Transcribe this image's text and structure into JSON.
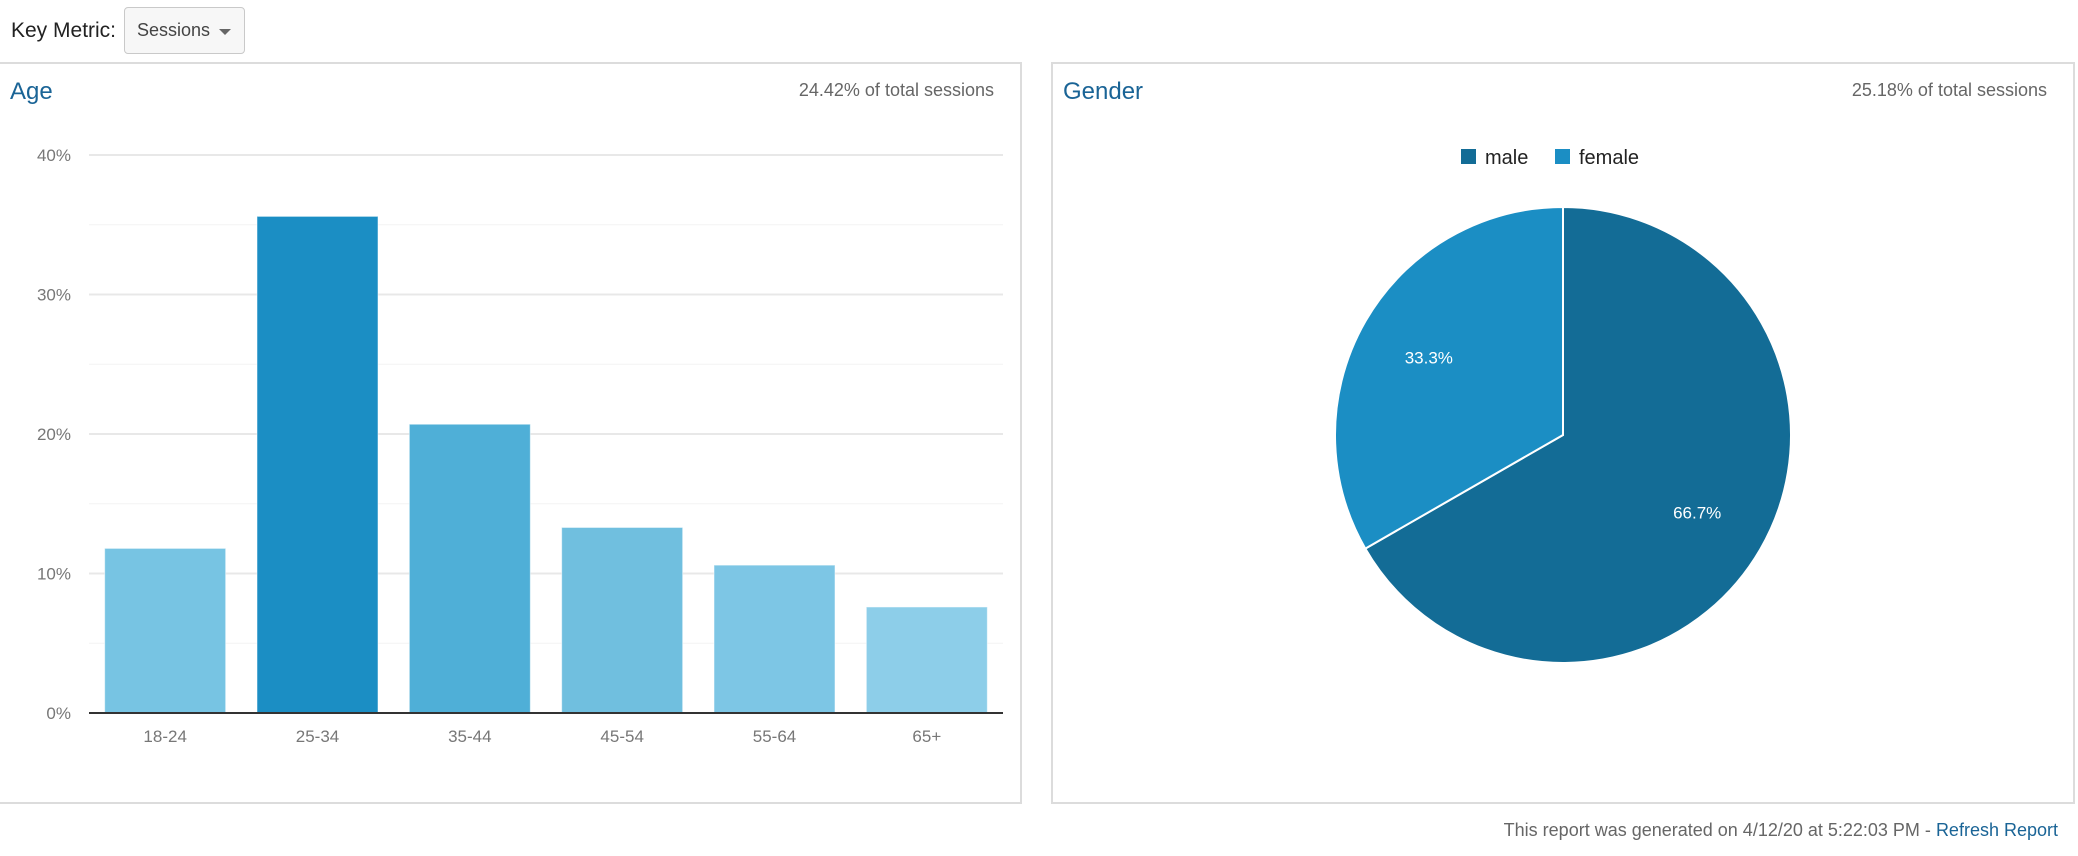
{
  "key_metric": {
    "label": "Key Metric:",
    "selected": "Sessions"
  },
  "age_panel": {
    "title": "Age",
    "subtitle": "24.42% of total sessions"
  },
  "gender_panel": {
    "title": "Gender",
    "subtitle": "25.18% of total sessions",
    "legend": [
      {
        "label": "male",
        "color": "#136c96"
      },
      {
        "label": "female",
        "color": "#1b8ec4"
      }
    ]
  },
  "footer": {
    "text": "This report was generated on 4/12/20 at 5:22:03 PM - ",
    "link": "Refresh Report"
  },
  "chart_data": [
    {
      "type": "bar",
      "title": "Age",
      "categories": [
        "18-24",
        "25-34",
        "35-44",
        "45-54",
        "55-64",
        "65+"
      ],
      "values": [
        11.8,
        35.6,
        20.7,
        13.3,
        10.6,
        7.6
      ],
      "colors": [
        "#77c4e3",
        "#1b8ec4",
        "#4fafd7",
        "#70bfdf",
        "#7dc6e5",
        "#8dcee9"
      ],
      "xlabel": "",
      "ylabel": "",
      "yticks": [
        "0%",
        "10%",
        "20%",
        "30%",
        "40%"
      ],
      "ylim": [
        0,
        40
      ],
      "grid": true,
      "unit": "%"
    },
    {
      "type": "pie",
      "title": "Gender",
      "categories": [
        "male",
        "female"
      ],
      "values": [
        66.7,
        33.3
      ],
      "labels": [
        "66.7%",
        "33.3%"
      ],
      "colors": [
        "#136c96",
        "#1b8ec4"
      ],
      "legend_position": "top"
    }
  ]
}
